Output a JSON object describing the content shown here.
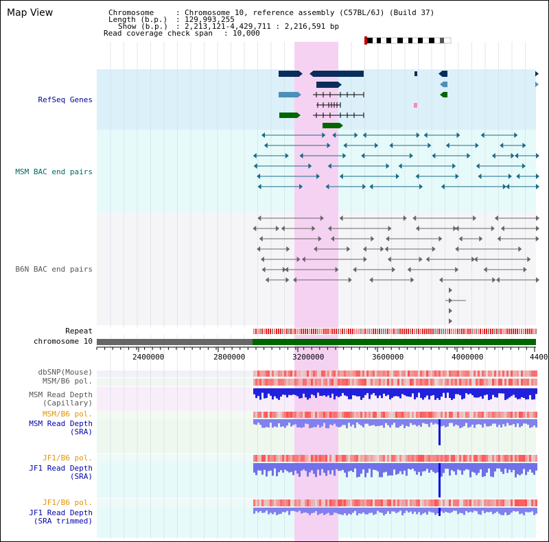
{
  "app_title": "Map View",
  "header": {
    "chromosome_label": "Chromosome",
    "chromosome_value": "Chromosome 10, reference assembly (C57BL/6J) (Build 37)",
    "length_label": "Length (b.p.)",
    "length_value": "129,993,255",
    "show_label": "Show (b.p.)",
    "show_value": "2,213,121-4,429,711 : 2,216,591 bp",
    "coverage_label": "Read coverage check span",
    "coverage_value": "10,000"
  },
  "tracks": {
    "refseq": "RefSeq Genes",
    "msm_bac": "MSM BAC end pairs",
    "b6n_bac": "B6N BAC end pairs",
    "repeat": "Repeat",
    "chromosome": "chromosome 10",
    "dbsnp": "dbSNP(Mouse)",
    "msm_b6_pol_1": "MSM/B6 pol.",
    "msm_depth_cap_1": "MSM Read Depth",
    "msm_depth_cap_2": "(Capillary)",
    "msm_b6_pol_2": "MSM/B6 pol.",
    "msm_depth_sra_1": "MSM Read Depth",
    "msm_depth_sra_2": "(SRA)",
    "jf1_b6_pol_1": "JF1/B6 pol.",
    "jf1_depth_sra_1": "JF1 Read Depth",
    "jf1_depth_sra_2": "(SRA)",
    "jf1_b6_pol_2": "JF1/B6 pol.",
    "jf1_depth_trim_1": "JF1 Read Depth",
    "jf1_depth_trim_2": "(SRA trimmed)"
  },
  "axis": {
    "ticks": [
      "2400000",
      "2800000",
      "3200000",
      "3600000",
      "4000000",
      "4400"
    ]
  },
  "colors": {
    "refseq_text": "#000099",
    "msm_text": "#006666",
    "b6n_text": "#555555",
    "orange_text": "#e39400",
    "blue_text": "#0000aa",
    "gray_text": "#555555",
    "highlight": "#f5d8f3",
    "refseq_bg": "#dcf0fa",
    "msm_bg": "#e6fafa",
    "b6n_bg": "#f5f5f8",
    "chrom_green": "#006600",
    "chrom_gray": "#666666"
  }
}
